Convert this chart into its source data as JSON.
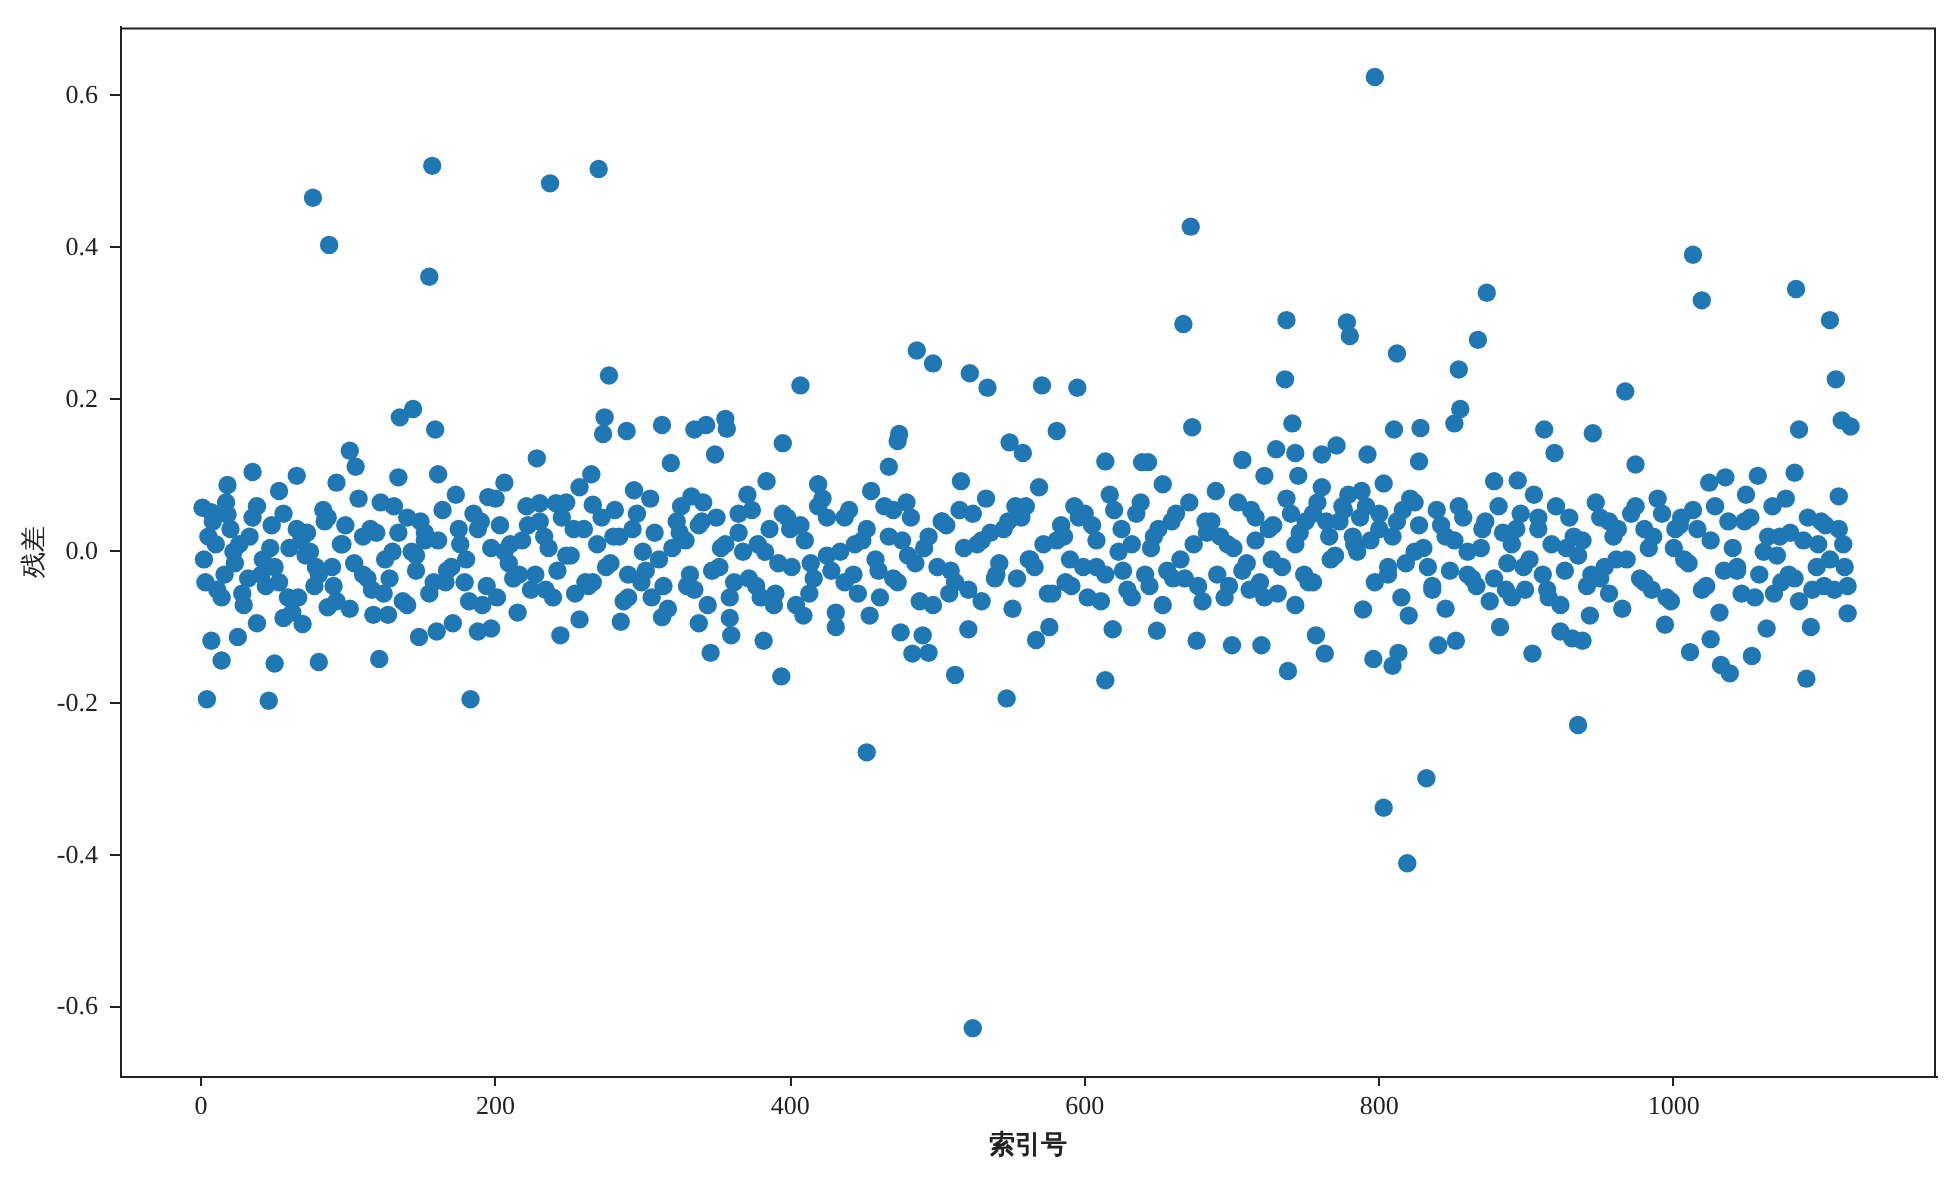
{
  "chart_data": {
    "type": "scatter",
    "xlabel": "索引号",
    "ylabel": "残差",
    "color": "#1f77b4",
    "marker": "circle",
    "xlim": [
      -55,
      1178
    ],
    "xticks": [
      0,
      200,
      400,
      600,
      800,
      1000
    ],
    "ylim": [
      -0.69,
      0.69
    ],
    "yticks": [
      -0.6,
      -0.4,
      -0.2,
      {
        "value": 0,
        "label": "0.0"
      },
      0.2,
      0.4,
      0.6
    ],
    "x": [
      1,
      4,
      7,
      7,
      14,
      18,
      18,
      25,
      35,
      38,
      46,
      50,
      56,
      65,
      69,
      76,
      80,
      86,
      87,
      92,
      101,
      105,
      117,
      121,
      127,
      134,
      135,
      144,
      148,
      155,
      157,
      159,
      160,
      161,
      171,
      183,
      188,
      195,
      197,
      206,
      228,
      230,
      237,
      241,
      244,
      257,
      265,
      266,
      270,
      273,
      274,
      277,
      285,
      289,
      294,
      313,
      313,
      319,
      333,
      335,
      338,
      343,
      346,
      349,
      356,
      357,
      359,
      360,
      382,
      384,
      394,
      395,
      407,
      409,
      419,
      431,
      452,
      454,
      467,
      473,
      474,
      475,
      483,
      486,
      490,
      494,
      497,
      512,
      516,
      521,
      522,
      524,
      534,
      547,
      549,
      558,
      567,
      571,
      576,
      581,
      595,
      614,
      614,
      619,
      639,
      643,
      649,
      653,
      667,
      672,
      673,
      676,
      700,
      707,
      720,
      722,
      730,
      736,
      737,
      738,
      741,
      743,
      743,
      745,
      757,
      761,
      763,
      771,
      778,
      780,
      789,
      792,
      796,
      797,
      803,
      809,
      810,
      812,
      813,
      819,
      820,
      827,
      828,
      832,
      840,
      851,
      852,
      854,
      855,
      867,
      873,
      878,
      882,
      894,
      904,
      912,
      919,
      923,
      931,
      935,
      938,
      943,
      945,
      967,
      974,
      994,
      1011,
      1013,
      1019,
      1024,
      1025,
      1032,
      1035,
      1038,
      1053,
      1057,
      1063,
      1082,
      1083,
      1085,
      1090,
      1093,
      1106,
      1110,
      1112,
      1114,
      1118,
      1120,
      3,
      10,
      16,
      22,
      28,
      33,
      42,
      48,
      53,
      60,
      66,
      72,
      78,
      84,
      90,
      96,
      110,
      115,
      124,
      130,
      140,
      146,
      152,
      166,
      175,
      180,
      190,
      201,
      210,
      216,
      222,
      234,
      248,
      253,
      261,
      280,
      290,
      300,
      306,
      325,
      330,
      340,
      352,
      365,
      372,
      378,
      390,
      400,
      414,
      425,
      437,
      444,
      460,
      470,
      480,
      503,
      508,
      530,
      540,
      553,
      562,
      586,
      591,
      600,
      608,
      625,
      632,
      645,
      660,
      682,
      690,
      697,
      712,
      716,
      727,
      750,
      755,
      766,
      775,
      783,
      787,
      800,
      806,
      816,
      824,
      836,
      845,
      860,
      870,
      886,
      890,
      898,
      908,
      915,
      927,
      950,
      956,
      961,
      980,
      985,
      1000,
      1005,
      1043,
      1048,
      1068,
      1072,
      1078,
      1098,
      1102,
      1116,
      5,
      11,
      17,
      23,
      29,
      35,
      41,
      47,
      53,
      59,
      65,
      71,
      77,
      83,
      89,
      95,
      101,
      107,
      113,
      119,
      125,
      131,
      137,
      143,
      149,
      155,
      161,
      167,
      173,
      179,
      185,
      191,
      197,
      203,
      209,
      215,
      221,
      227,
      233,
      239,
      245,
      251,
      257,
      263,
      269,
      275,
      281,
      287,
      293,
      299,
      305,
      311,
      317,
      323,
      329,
      335,
      341,
      347,
      353,
      359,
      365,
      371,
      377,
      383,
      389,
      395,
      401,
      407,
      413,
      419,
      425,
      431,
      437,
      443,
      449,
      455,
      461,
      467,
      473,
      479,
      485,
      491,
      497,
      503,
      509,
      515,
      521,
      527,
      533,
      539,
      545,
      551,
      557,
      563,
      569,
      575,
      581,
      587,
      593,
      599,
      605,
      611,
      617,
      623,
      629,
      635,
      641,
      647,
      653,
      659,
      665,
      671,
      677,
      683,
      689,
      695,
      701,
      707,
      713,
      719,
      725,
      731,
      737,
      743,
      749,
      755,
      761,
      767,
      773,
      779,
      785,
      791,
      797,
      803,
      809,
      815,
      821,
      827,
      833,
      839,
      845,
      851,
      857,
      863,
      869,
      875,
      881,
      887,
      893,
      899,
      905,
      911,
      917,
      923,
      929,
      935,
      941,
      947,
      953,
      959,
      965,
      971,
      977,
      983,
      989,
      995,
      1001,
      1007,
      1013,
      1019,
      1025,
      1031,
      1037,
      1043,
      1049,
      1055,
      1061,
      1067,
      1073,
      1079,
      1085,
      1091,
      1097,
      1103,
      1109,
      1115,
      2,
      8,
      14,
      20,
      26,
      32,
      38,
      44,
      50,
      56,
      62,
      68,
      74,
      80,
      86,
      92,
      98,
      104,
      110,
      116,
      122,
      128,
      134,
      140,
      146,
      152,
      158,
      164,
      170,
      176,
      182,
      188,
      194,
      200,
      206,
      212,
      218,
      224,
      230,
      236,
      242,
      248,
      254,
      260,
      266,
      272,
      278,
      284,
      290,
      296,
      302,
      308,
      314,
      320,
      326,
      332,
      338,
      344,
      350,
      356,
      362,
      368,
      374,
      380,
      386,
      392,
      398,
      404,
      410,
      416,
      422,
      428,
      434,
      440,
      446,
      452,
      458,
      464,
      470,
      476,
      482,
      488,
      494,
      500,
      506,
      512,
      518,
      524,
      530,
      536,
      542,
      548,
      554,
      560,
      566,
      572,
      578,
      584,
      590,
      596,
      602,
      608,
      614,
      620,
      626,
      632,
      638,
      644,
      650,
      656,
      662,
      668,
      674,
      680,
      686,
      692,
      698,
      704,
      710,
      716,
      722,
      728,
      734,
      740,
      746,
      752,
      758,
      764,
      770,
      776,
      782,
      788,
      794,
      800,
      806,
      812,
      818,
      824,
      830,
      836,
      842,
      848,
      854,
      860,
      866,
      872,
      878,
      884,
      890,
      896,
      902,
      908,
      914,
      920,
      926,
      932,
      938,
      944,
      950,
      956,
      962,
      968,
      974,
      980,
      986,
      992,
      998,
      1004,
      1010,
      1016,
      1022,
      1028,
      1034,
      1040,
      1046,
      1052,
      1058,
      1064,
      1070,
      1076,
      1082,
      1088,
      1094,
      1100,
      1106,
      1112,
      1118
    ],
    "values": [
      0.058,
      -0.194,
      0.052,
      -0.117,
      -0.143,
      0.088,
      0.049,
      -0.112,
      0.105,
      -0.094,
      -0.196,
      -0.147,
      -0.087,
      0.1,
      -0.095,
      0.466,
      -0.145,
      -0.073,
      0.404,
      0.091,
      0.133,
      0.112,
      -0.083,
      -0.141,
      -0.083,
      0.098,
      0.177,
      0.188,
      -0.112,
      0.362,
      0.508,
      0.161,
      -0.105,
      0.102,
      -0.094,
      -0.194,
      -0.105,
      0.072,
      -0.101,
      0.091,
      0.123,
      0.064,
      0.485,
      0.064,
      -0.11,
      -0.089,
      0.102,
      0.062,
      0.504,
      0.155,
      0.177,
      0.232,
      -0.092,
      0.159,
      0.081,
      0.167,
      -0.086,
      0.117,
      0.073,
      0.161,
      -0.094,
      0.167,
      -0.133,
      0.128,
      0.175,
      0.162,
      -0.087,
      -0.11,
      -0.117,
      0.093,
      -0.164,
      0.143,
      0.219,
      -0.084,
      0.089,
      -0.099,
      -0.264,
      -0.084,
      0.112,
      0.146,
      0.155,
      -0.106,
      -0.134,
      0.265,
      -0.11,
      -0.133,
      0.248,
      -0.162,
      0.093,
      -0.102,
      0.235,
      -0.627,
      0.216,
      -0.193,
      0.144,
      0.13,
      -0.116,
      0.219,
      -0.099,
      0.159,
      0.216,
      0.119,
      -0.169,
      -0.102,
      0.118,
      0.118,
      -0.104,
      0.089,
      0.3,
      0.428,
      0.164,
      -0.117,
      -0.123,
      0.121,
      -0.123,
      0.1,
      0.135,
      0.227,
      0.305,
      -0.157,
      0.169,
      0.13,
      -0.07,
      0.1,
      -0.11,
      0.128,
      -0.134,
      0.14,
      0.302,
      0.284,
      -0.076,
      0.128,
      -0.141,
      0.625,
      -0.337,
      -0.15,
      0.161,
      0.261,
      -0.133,
      -0.41,
      -0.084,
      0.119,
      0.163,
      -0.298,
      -0.123,
      0.169,
      -0.117,
      0.24,
      0.188,
      0.279,
      0.341,
      0.093,
      -0.099,
      0.094,
      -0.134,
      0.161,
      0.13,
      -0.105,
      -0.114,
      -0.228,
      -0.117,
      -0.084,
      0.156,
      0.211,
      0.115,
      -0.096,
      -0.132,
      0.391,
      0.331,
      0.091,
      -0.115,
      -0.149,
      0.098,
      -0.16,
      -0.137,
      0.1,
      -0.101,
      0.104,
      0.346,
      0.161,
      -0.167,
      -0.099,
      0.305,
      0.227,
      0.073,
      0.173,
      -0.081,
      0.165,
      -0.04,
      0.01,
      -0.03,
      0.0,
      -0.055,
      0.02,
      -0.01,
      0.035,
      -0.04,
      0.005,
      -0.06,
      0.025,
      -0.02,
      0.04,
      -0.045,
      0.01,
      -0.03,
      0.03,
      -0.055,
      0.0,
      0.045,
      -0.025,
      0.015,
      -0.04,
      0.03,
      -0.01,
      0.04,
      -0.06,
      0.01,
      -0.03,
      0.035,
      -0.05,
      -0.005,
      0.03,
      -0.04,
      0.02,
      -0.03,
      0.0,
      -0.06,
      0.025,
      -0.045,
      0.04,
      -0.02,
      0.05,
      -0.035,
      0.01,
      -0.055,
      0.03,
      -0.015,
      0.045,
      -0.04,
      0.01,
      -0.025,
      0.055,
      -0.005,
      0.04,
      -0.055,
      0.015,
      -0.03,
      0.06,
      -0.01,
      0.02,
      -0.045,
      0.05,
      -0.02,
      0.03,
      -0.06,
      0.005,
      -0.035,
      0.04,
      -0.03,
      0.01,
      -0.05,
      0.045,
      -0.01,
      0.04,
      -0.04,
      0.02,
      0.06,
      0.01,
      0.045,
      0.03,
      -0.02,
      0.055,
      0.0,
      -0.045,
      0.02,
      -0.03,
      0.03,
      -0.05,
      0.01,
      -0.02,
      0.045,
      -0.06,
      0.005,
      -0.035,
      0.04,
      -0.01,
      0.03,
      -0.05,
      0.005,
      0.045,
      -0.02,
      0.04,
      -0.055,
      0.02,
      -0.03,
      0.01,
      -0.045,
      -0.02,
      0.02,
      -0.05,
      0.065,
      -0.015,
      -0.07,
      0.045,
      -0.03,
      0.005,
      0.08,
      -0.06,
      0.03,
      -0.005,
      -0.045,
      0.055,
      -0.02,
      0.01,
      -0.075,
      0.07,
      -0.035,
      0.025,
      -0.01,
      0.06,
      -0.065,
      0.0,
      0.04,
      -0.055,
      0.015,
      -0.025,
      0.075,
      -0.04,
      0.05,
      -0.07,
      0.005,
      0.035,
      -0.015,
      -0.08,
      0.06,
      -0.03,
      0.02,
      -0.06,
      0.045,
      -0.005,
      0.085,
      -0.045,
      0.01,
      -0.02,
      0.055,
      -0.065,
      0.03,
      -0.04,
      0.07,
      -0.01,
      -0.075,
      0.04,
      0.015,
      -0.05,
      0.065,
      -0.025,
      0.005,
      -0.06,
      0.025,
      0.075,
      -0.045,
      0.0,
      -0.07,
      0.05,
      -0.02,
      0.035,
      -0.055,
      0.06,
      -0.005,
      -0.08,
      0.045,
      -0.03,
      0.015,
      0.08,
      -0.06,
      0.02,
      -0.04,
      0.065,
      -0.015,
      0.005,
      -0.07,
      0.04,
      -0.025,
      0.055,
      -0.05,
      0.01,
      0.07,
      -0.035,
      0.03,
      -0.075,
      0.045,
      -0.01,
      0.085,
      -0.055,
      0.015,
      -0.04,
      0.06,
      -0.02,
      0.035,
      -0.065,
      0.075,
      0.0,
      -0.05,
      0.05,
      -0.03,
      0.02,
      -0.07,
      0.04,
      -0.01,
      0.065,
      -0.045,
      0.025,
      0.08,
      -0.06,
      0.005,
      -0.025,
      0.055,
      -0.04,
      0.03,
      -0.055,
      0.07,
      0.01,
      -0.03,
      0.05,
      0.085,
      -0.01,
      0.04,
      0.075,
      0.0,
      0.06,
      -0.04,
      0.09,
      0.02,
      -0.06,
      0.07,
      0.035,
      -0.02,
      0.055,
      -0.075,
      0.015,
      0.045,
      -0.035,
      0.005,
      -0.065,
      0.06,
      -0.015,
      0.03,
      -0.05,
      0.075,
      -0.03,
      0.01,
      -0.07,
      0.045,
      -0.005,
      -0.045,
      0.065,
      -0.02,
      0.02,
      -0.075,
      0.05,
      -0.035,
      0.005,
      0.07,
      -0.06,
      0.03,
      -0.01,
      0.055,
      -0.05,
      0.015,
      -0.08,
      0.04,
      -0.025,
      0.075,
      -0.06,
      0.0,
      0.06,
      -0.04,
      0.025,
      -0.065,
      0.045,
      -0.02,
      0.035,
      -0.05,
      0.01,
      -0.01,
      0.04,
      -0.06,
      0.03,
      0.01,
      -0.035,
      0.06,
      -0.045,
      -0.02,
      0.05,
      -0.08,
      0.015,
      0.0,
      -0.03,
      0.045,
      -0.065,
      0.035,
      -0.015,
      0.02,
      -0.05,
      0.065,
      -0.035,
      0.025,
      -0.07,
      -0.005,
      0.025,
      -0.04,
      0.055,
      -0.02,
      0.01,
      -0.065,
      0.03,
      -0.045,
      0.07,
      0.0,
      -0.035,
      0.015,
      -0.05,
      0.04,
      0.005,
      -0.025,
      0.065,
      -0.055,
      0.03,
      -0.04,
      0.045,
      -0.015,
      0.02,
      -0.06,
      0.05,
      -0.025,
      0.025,
      -0.045,
      0.005,
      0.06,
      -0.03,
      0.035,
      -0.07,
      0.045,
      0.01,
      -0.04,
      0.0,
      0.055,
      -0.06,
      0.03,
      -0.015,
      0.045,
      -0.07,
      0.015,
      -0.035,
      0.07,
      -0.025,
      0.0,
      0.055,
      -0.055,
      0.03,
      -0.01,
      0.06,
      -0.035,
      0.015,
      0.045,
      -0.065,
      0.02,
      -0.02,
      0.035,
      -0.04,
      0.005,
      0.05,
      -0.065,
      0.025,
      -0.015,
      0.04,
      -0.035,
      0.06,
      -0.02,
      0.01,
      -0.055,
      0.035,
      -0.01,
      0.045,
      -0.06,
      0.015,
      -0.03,
      0.055,
      -0.025,
      0.01,
      0.065,
      -0.045,
      0.03,
      -0.025,
      0.05,
      -0.035,
      0.01,
      -0.065,
      0.04,
      0.02,
      -0.045,
      0.065,
      -0.015,
      0.015,
      -0.06,
      0.035,
      -0.02,
      0.05,
      0.025,
      -0.04,
      0.065,
      0.04,
      -0.005,
      0.055,
      0.02,
      0.08,
      0.015,
      0.05,
      -0.03,
      0.04,
      -0.015,
      0.065,
      0.005,
      -0.05,
      0.035,
      -0.025,
      0.06,
      0.0,
      -0.045,
      0.04,
      -0.035,
      0.025,
      -0.06,
      0.05,
      -0.01,
      0.03,
      -0.05,
      0.06,
      -0.025,
      0.02,
      0.015,
      -0.03,
      0.045,
      -0.055,
      0.03,
      -0.01,
      0.06,
      -0.04,
      0.02,
      0.05,
      -0.065,
      0.035,
      -0.015,
      0.03,
      -0.045,
      0.06,
      -0.025,
      0.005,
      -0.055,
      0.045,
      -0.03,
      0.02,
      -0.005,
      0.07,
      -0.035,
      0.015,
      -0.05,
      0.04,
      -0.01,
      0.03,
      -0.045
    ]
  }
}
